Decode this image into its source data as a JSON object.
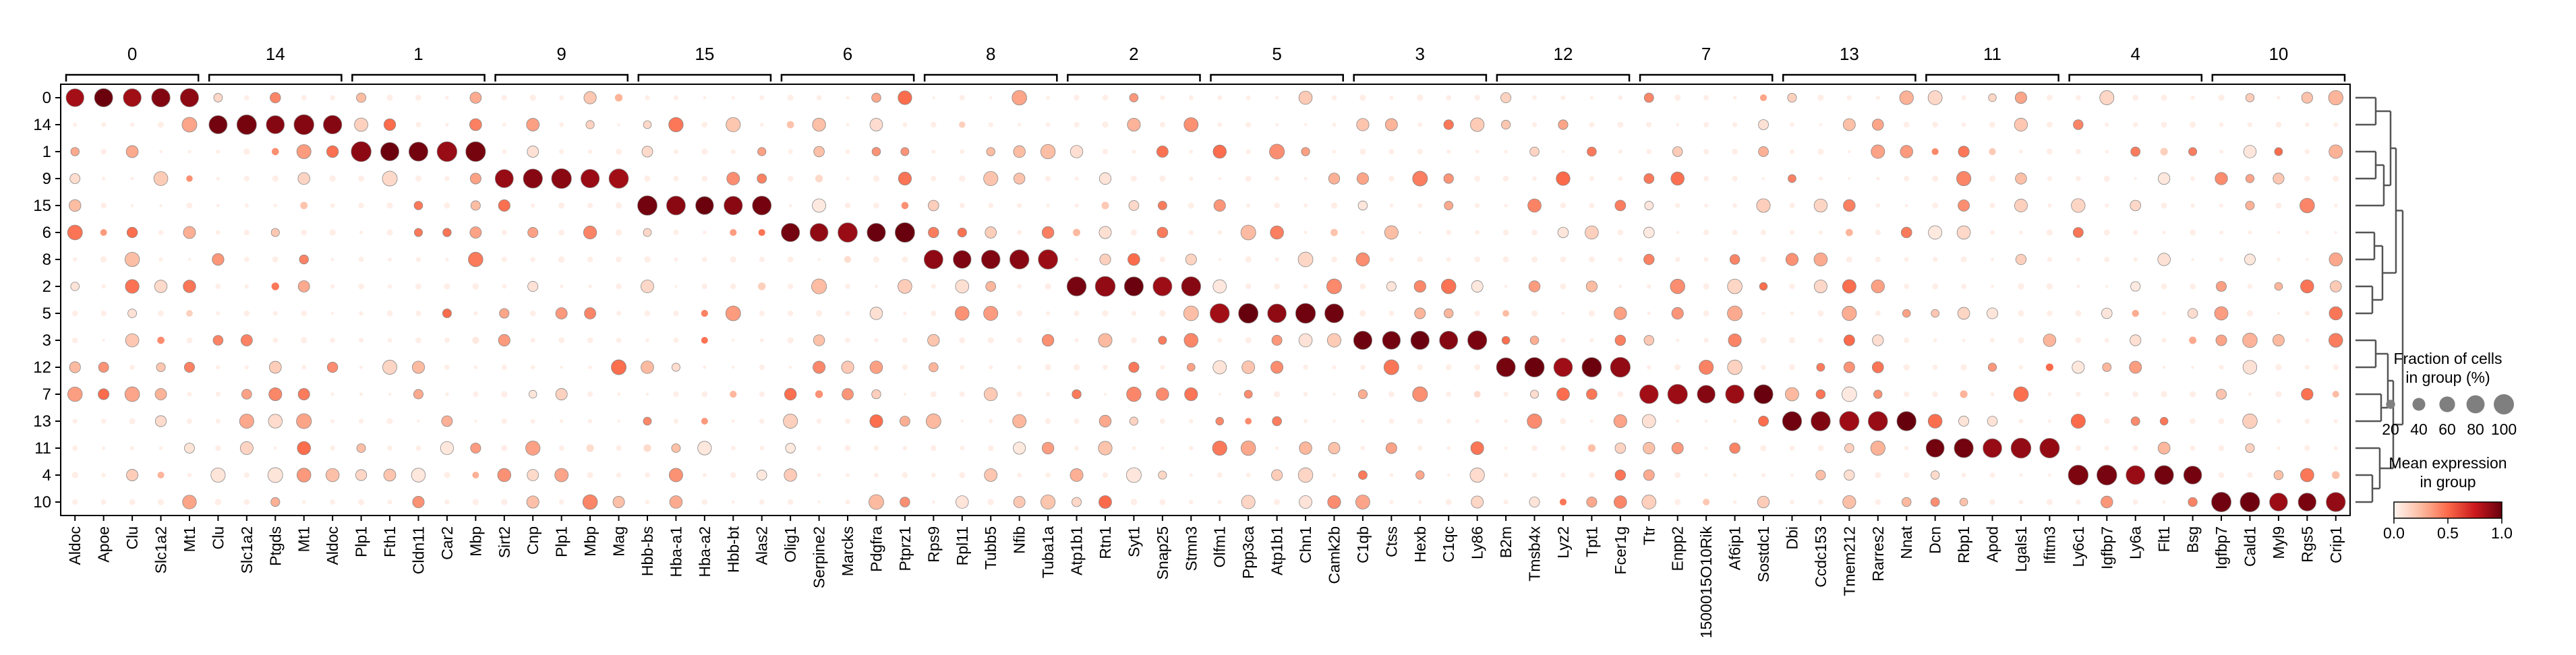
{
  "chart_data": {
    "type": "dotplot",
    "row_labels": [
      "0",
      "14",
      "1",
      "9",
      "15",
      "6",
      "8",
      "2",
      "5",
      "3",
      "12",
      "7",
      "13",
      "11",
      "4",
      "10"
    ],
    "gene_groups": [
      {
        "label": "0",
        "genes": [
          "Aldoc",
          "Apoe",
          "Clu",
          "Slc1a2",
          "Mt1"
        ]
      },
      {
        "label": "14",
        "genes": [
          "Clu",
          "Slc1a2",
          "Ptgds",
          "Mt1",
          "Aldoc"
        ]
      },
      {
        "label": "1",
        "genes": [
          "Plp1",
          "Fth1",
          "Cldn11",
          "Car2",
          "Mbp"
        ]
      },
      {
        "label": "9",
        "genes": [
          "Sirt2",
          "Cnp",
          "Plp1",
          "Mbp",
          "Mag"
        ]
      },
      {
        "label": "15",
        "genes": [
          "Hbb-bs",
          "Hba-a1",
          "Hba-a2",
          "Hbb-bt",
          "Alas2"
        ]
      },
      {
        "label": "6",
        "genes": [
          "Olig1",
          "Serpine2",
          "Marcks",
          "Pdgfra",
          "Ptprz1"
        ]
      },
      {
        "label": "8",
        "genes": [
          "Rps9",
          "Rpl11",
          "Tubb5",
          "Nfib",
          "Tuba1a"
        ]
      },
      {
        "label": "2",
        "genes": [
          "Atp1b1",
          "Rtn1",
          "Syt1",
          "Snap25",
          "Stmn3"
        ]
      },
      {
        "label": "5",
        "genes": [
          "Olfm1",
          "Ppp3ca",
          "Atp1b1",
          "Chn1",
          "Camk2b"
        ]
      },
      {
        "label": "3",
        "genes": [
          "C1qb",
          "Ctss",
          "Hexb",
          "C1qc",
          "Ly86"
        ]
      },
      {
        "label": "12",
        "genes": [
          "B2m",
          "Tmsb4x",
          "Lyz2",
          "Tpt1",
          "Fcer1g"
        ]
      },
      {
        "label": "7",
        "genes": [
          "Ttr",
          "Enpp2",
          "1500015O10Rik",
          "Af6ip1",
          "Sostdc1"
        ]
      },
      {
        "label": "13",
        "genes": [
          "Dbi",
          "Ccdc153",
          "Tmem212",
          "Rarres2",
          "Nnat"
        ]
      },
      {
        "label": "11",
        "genes": [
          "Dcn",
          "Rbp1",
          "Apod",
          "Lgals1",
          "Ifitm3"
        ]
      },
      {
        "label": "4",
        "genes": [
          "Ly6c1",
          "Igfbp7",
          "Ly6a",
          "Flt1",
          "Bsg"
        ]
      },
      {
        "label": "10",
        "genes": [
          "Igfbp7",
          "Cald1",
          "Myl9",
          "Rgs5",
          "Crip1"
        ]
      }
    ],
    "size_legend": {
      "title_lines": [
        "Fraction of cells",
        "in group (%)"
      ],
      "values": [
        20,
        40,
        60,
        80,
        100
      ],
      "tick_labels": [
        "20",
        "40",
        "60",
        "80",
        "100"
      ]
    },
    "color_legend": {
      "title_lines": [
        "Mean expression",
        "in group"
      ],
      "ticks": [
        "0.0",
        "0.5",
        "1.0"
      ],
      "range": [
        0,
        1
      ],
      "colormap": "Reds"
    },
    "dendrogram": {
      "position": "right",
      "joins": [
        [
          "0",
          "14"
        ],
        [
          "1",
          "9"
        ],
        [
          "2",
          "5"
        ],
        [
          "3",
          "12"
        ],
        [
          "4",
          "10"
        ]
      ]
    },
    "grid": false,
    "notes_hidden": ""
  }
}
